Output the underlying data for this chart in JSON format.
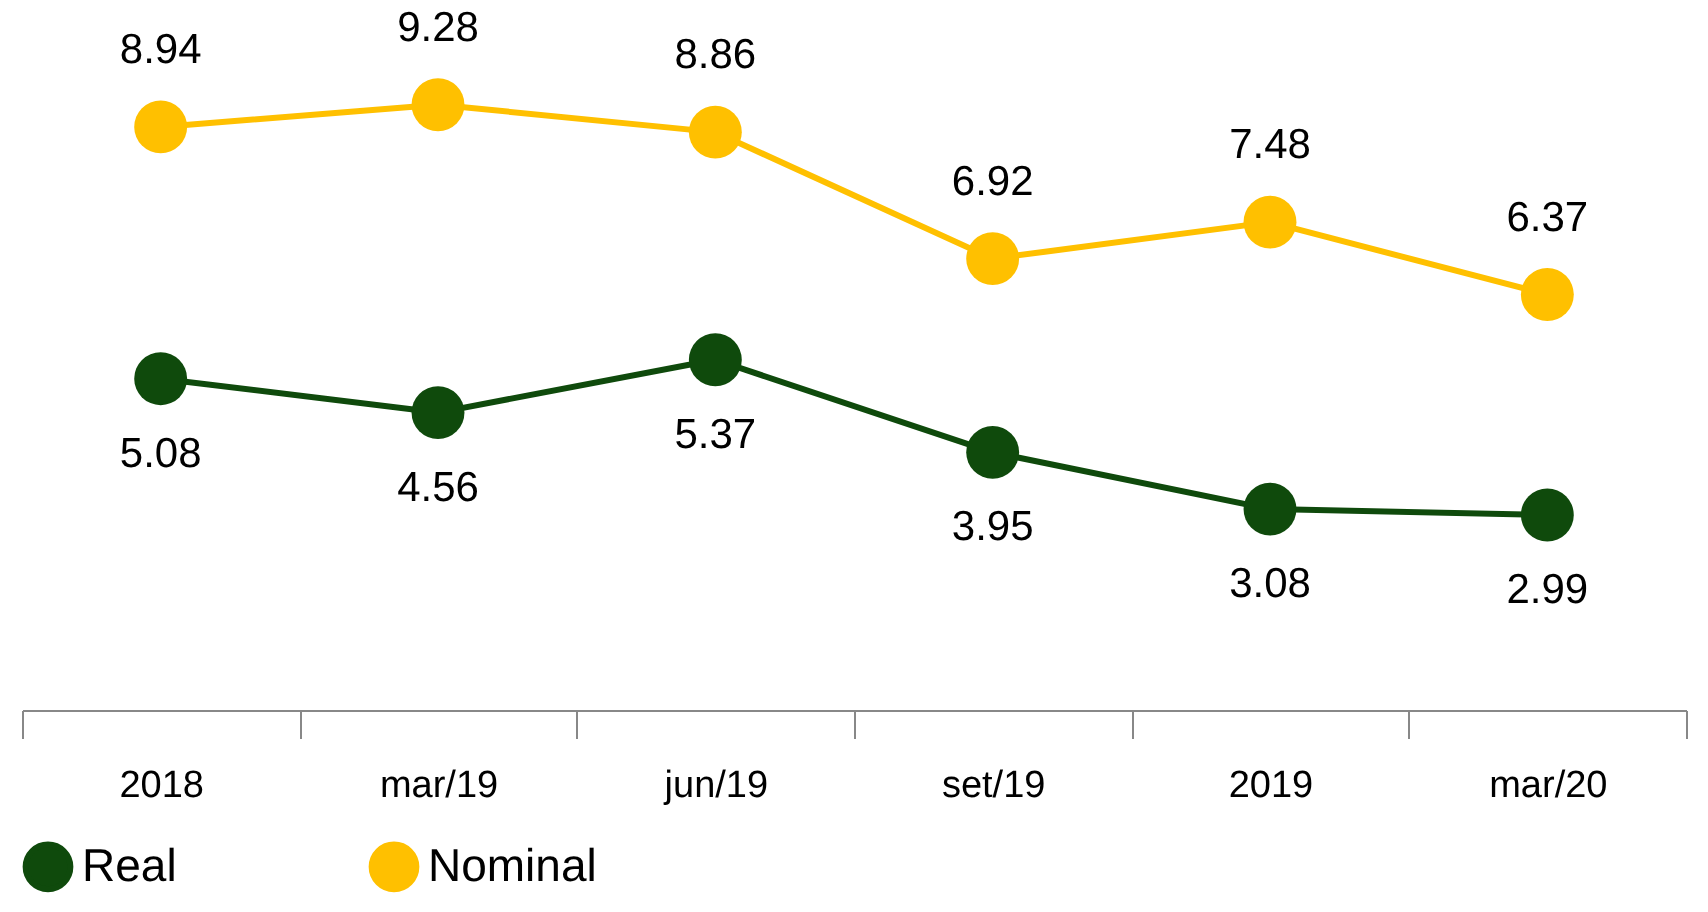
{
  "chart_data": {
    "type": "line",
    "categories": [
      "2018",
      "mar/19",
      "jun/19",
      "set/19",
      "2019",
      "mar/20"
    ],
    "series": [
      {
        "name": "Real",
        "color": "#0f4a0c",
        "values": [
          5.08,
          4.56,
          5.37,
          3.95,
          3.08,
          2.99
        ]
      },
      {
        "name": "Nominal",
        "color": "#ffc000",
        "values": [
          8.94,
          9.28,
          8.86,
          6.92,
          7.48,
          6.37
        ]
      }
    ],
    "data_labels": true,
    "marker": "circle",
    "line_style": "solid",
    "legend": "bottom",
    "grid": false,
    "tick_labels": "x"
  }
}
